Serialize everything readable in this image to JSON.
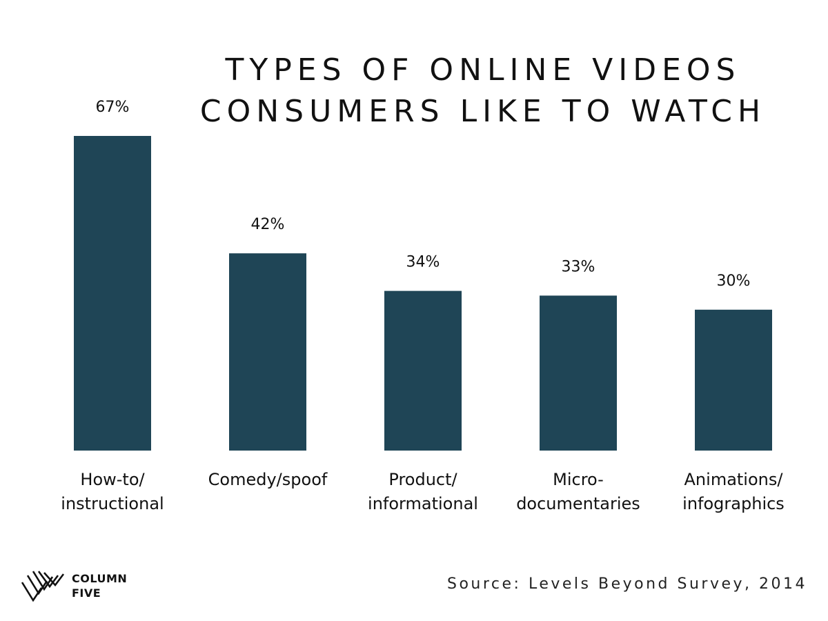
{
  "title_lines": [
    "TYPES OF ONLINE VIDEOS",
    "CONSUMERS LIKE TO WATCH"
  ],
  "source": "Source: Levels Beyond Survey, 2014",
  "logo": {
    "line1": "COLUMN",
    "line2": "FIVE"
  },
  "colors": {
    "bar": "#1f4556",
    "text": "#111111"
  },
  "chart_data": {
    "type": "bar",
    "title": "TYPES OF ONLINE VIDEOS CONSUMERS LIKE TO WATCH",
    "categories": [
      [
        "How-to/",
        "instructional"
      ],
      [
        "Comedy/spoof"
      ],
      [
        "Product/",
        "informational"
      ],
      [
        "Micro-",
        "documentaries"
      ],
      [
        "Animations/",
        "infographics"
      ]
    ],
    "values": [
      67,
      42,
      34,
      33,
      30
    ],
    "value_labels": [
      "67%",
      "42%",
      "34%",
      "33%",
      "30%"
    ],
    "unit": "%",
    "ylim": [
      0,
      100
    ],
    "grid": false,
    "axes_visible": false
  }
}
